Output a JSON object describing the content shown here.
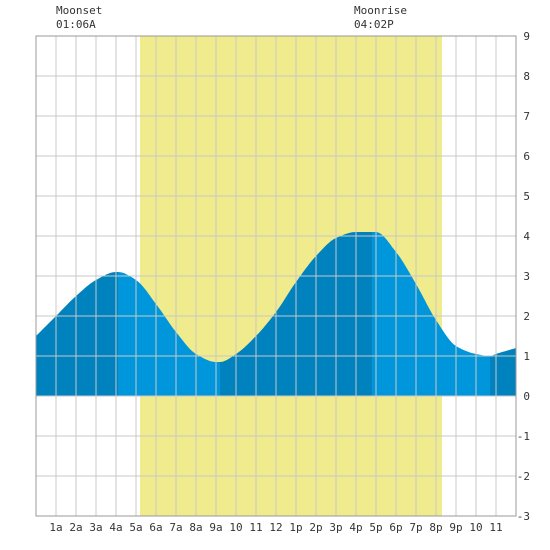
{
  "annotations": [
    {
      "label": "Moonset",
      "time": "01:06A",
      "hour": 1.1
    },
    {
      "label": "Moonrise",
      "time": "04:02P",
      "hour": 16.03
    }
  ],
  "colors": {
    "daylight": "#f0eb8c",
    "tide_light": "#0096dc",
    "tide_dark": "#0082be",
    "grid": "#c8c8c8",
    "axis_text": "#333333"
  },
  "chart_data": {
    "type": "area",
    "title": "",
    "xlabel": "",
    "ylabel": "",
    "xlim": [
      0,
      24
    ],
    "ylim": [
      -3,
      9
    ],
    "grid": true,
    "x_ticks": [
      {
        "hour": 1,
        "label": "1a"
      },
      {
        "hour": 2,
        "label": "2a"
      },
      {
        "hour": 3,
        "label": "3a"
      },
      {
        "hour": 4,
        "label": "4a"
      },
      {
        "hour": 5,
        "label": "5a"
      },
      {
        "hour": 6,
        "label": "6a"
      },
      {
        "hour": 7,
        "label": "7a"
      },
      {
        "hour": 8,
        "label": "8a"
      },
      {
        "hour": 9,
        "label": "9a"
      },
      {
        "hour": 10,
        "label": "10"
      },
      {
        "hour": 11,
        "label": "11"
      },
      {
        "hour": 12,
        "label": "12"
      },
      {
        "hour": 13,
        "label": "1p"
      },
      {
        "hour": 14,
        "label": "2p"
      },
      {
        "hour": 15,
        "label": "3p"
      },
      {
        "hour": 16,
        "label": "4p"
      },
      {
        "hour": 17,
        "label": "5p"
      },
      {
        "hour": 18,
        "label": "6p"
      },
      {
        "hour": 19,
        "label": "7p"
      },
      {
        "hour": 20,
        "label": "8p"
      },
      {
        "hour": 21,
        "label": "9p"
      },
      {
        "hour": 22,
        "label": "10"
      },
      {
        "hour": 23,
        "label": "11"
      }
    ],
    "y_ticks": [
      -3,
      -2,
      -1,
      0,
      1,
      2,
      3,
      4,
      5,
      6,
      7,
      8,
      9
    ],
    "daylight": {
      "start_hour": 5.2,
      "end_hour": 20.3
    },
    "extremes": [
      {
        "hour": 4.1,
        "height": 3.1,
        "type": "high"
      },
      {
        "hour": 9.2,
        "height": 0.85,
        "type": "low"
      },
      {
        "hour": 16.8,
        "height": 4.1,
        "type": "high"
      },
      {
        "hour": 22.7,
        "height": 1.0,
        "type": "low"
      }
    ],
    "series": [
      {
        "x": [
          0,
          1,
          2,
          3,
          4,
          4.1,
          5,
          6,
          7,
          8,
          9,
          9.2,
          10,
          11,
          12,
          13,
          14,
          15,
          16,
          16.8,
          17,
          18,
          19,
          20,
          21,
          22,
          22.7,
          23,
          24
        ],
        "values": [
          1.5,
          2.0,
          2.5,
          2.9,
          3.1,
          3.1,
          2.9,
          2.3,
          1.6,
          1.05,
          0.85,
          0.85,
          1.05,
          1.5,
          2.1,
          2.85,
          3.5,
          3.95,
          4.1,
          4.1,
          4.1,
          3.6,
          2.8,
          1.9,
          1.25,
          1.05,
          1.0,
          1.05,
          1.2
        ]
      }
    ]
  }
}
